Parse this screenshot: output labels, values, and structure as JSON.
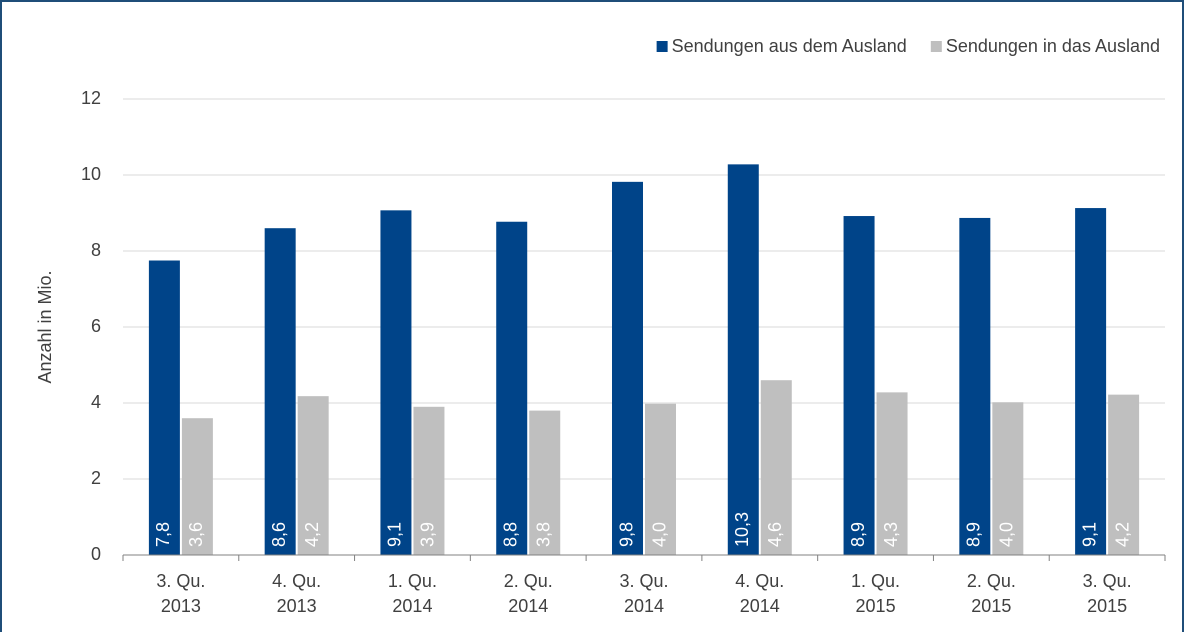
{
  "chart_data": {
    "type": "bar",
    "y_label": "Anzahl in Mio.",
    "categories": [
      [
        "3. Qu.",
        "2013"
      ],
      [
        "4. Qu.",
        "2013"
      ],
      [
        "1. Qu.",
        "2014"
      ],
      [
        "2. Qu.",
        "2014"
      ],
      [
        "3. Qu.",
        "2014"
      ],
      [
        "4. Qu.",
        "2014"
      ],
      [
        "1. Qu.",
        "2015"
      ],
      [
        "2. Qu.",
        "2015"
      ],
      [
        "3. Qu.",
        "2015"
      ]
    ],
    "series": [
      {
        "name": "Sendungen aus dem Ausland",
        "color": "#004489",
        "values": [
          7.75,
          8.6,
          9.07,
          8.77,
          9.82,
          10.28,
          8.92,
          8.87,
          9.13
        ],
        "value_labels": [
          "7,8",
          "8,6",
          "9,1",
          "8,8",
          "9,8",
          "10,3",
          "8,9",
          "8,9",
          "9,1"
        ]
      },
      {
        "name": "Sendungen in das Ausland",
        "color": "#bfbfbf",
        "values": [
          3.6,
          4.18,
          3.9,
          3.8,
          3.98,
          4.6,
          4.28,
          4.02,
          4.22
        ],
        "value_labels": [
          "3,6",
          "4,2",
          "3,9",
          "3,8",
          "4,0",
          "4,6",
          "4,3",
          "4,0",
          "4,2"
        ]
      }
    ],
    "ylim": [
      0,
      12
    ],
    "yticks": [
      0,
      2,
      4,
      6,
      8,
      10,
      12
    ],
    "grid": true,
    "legend": "top-right"
  }
}
